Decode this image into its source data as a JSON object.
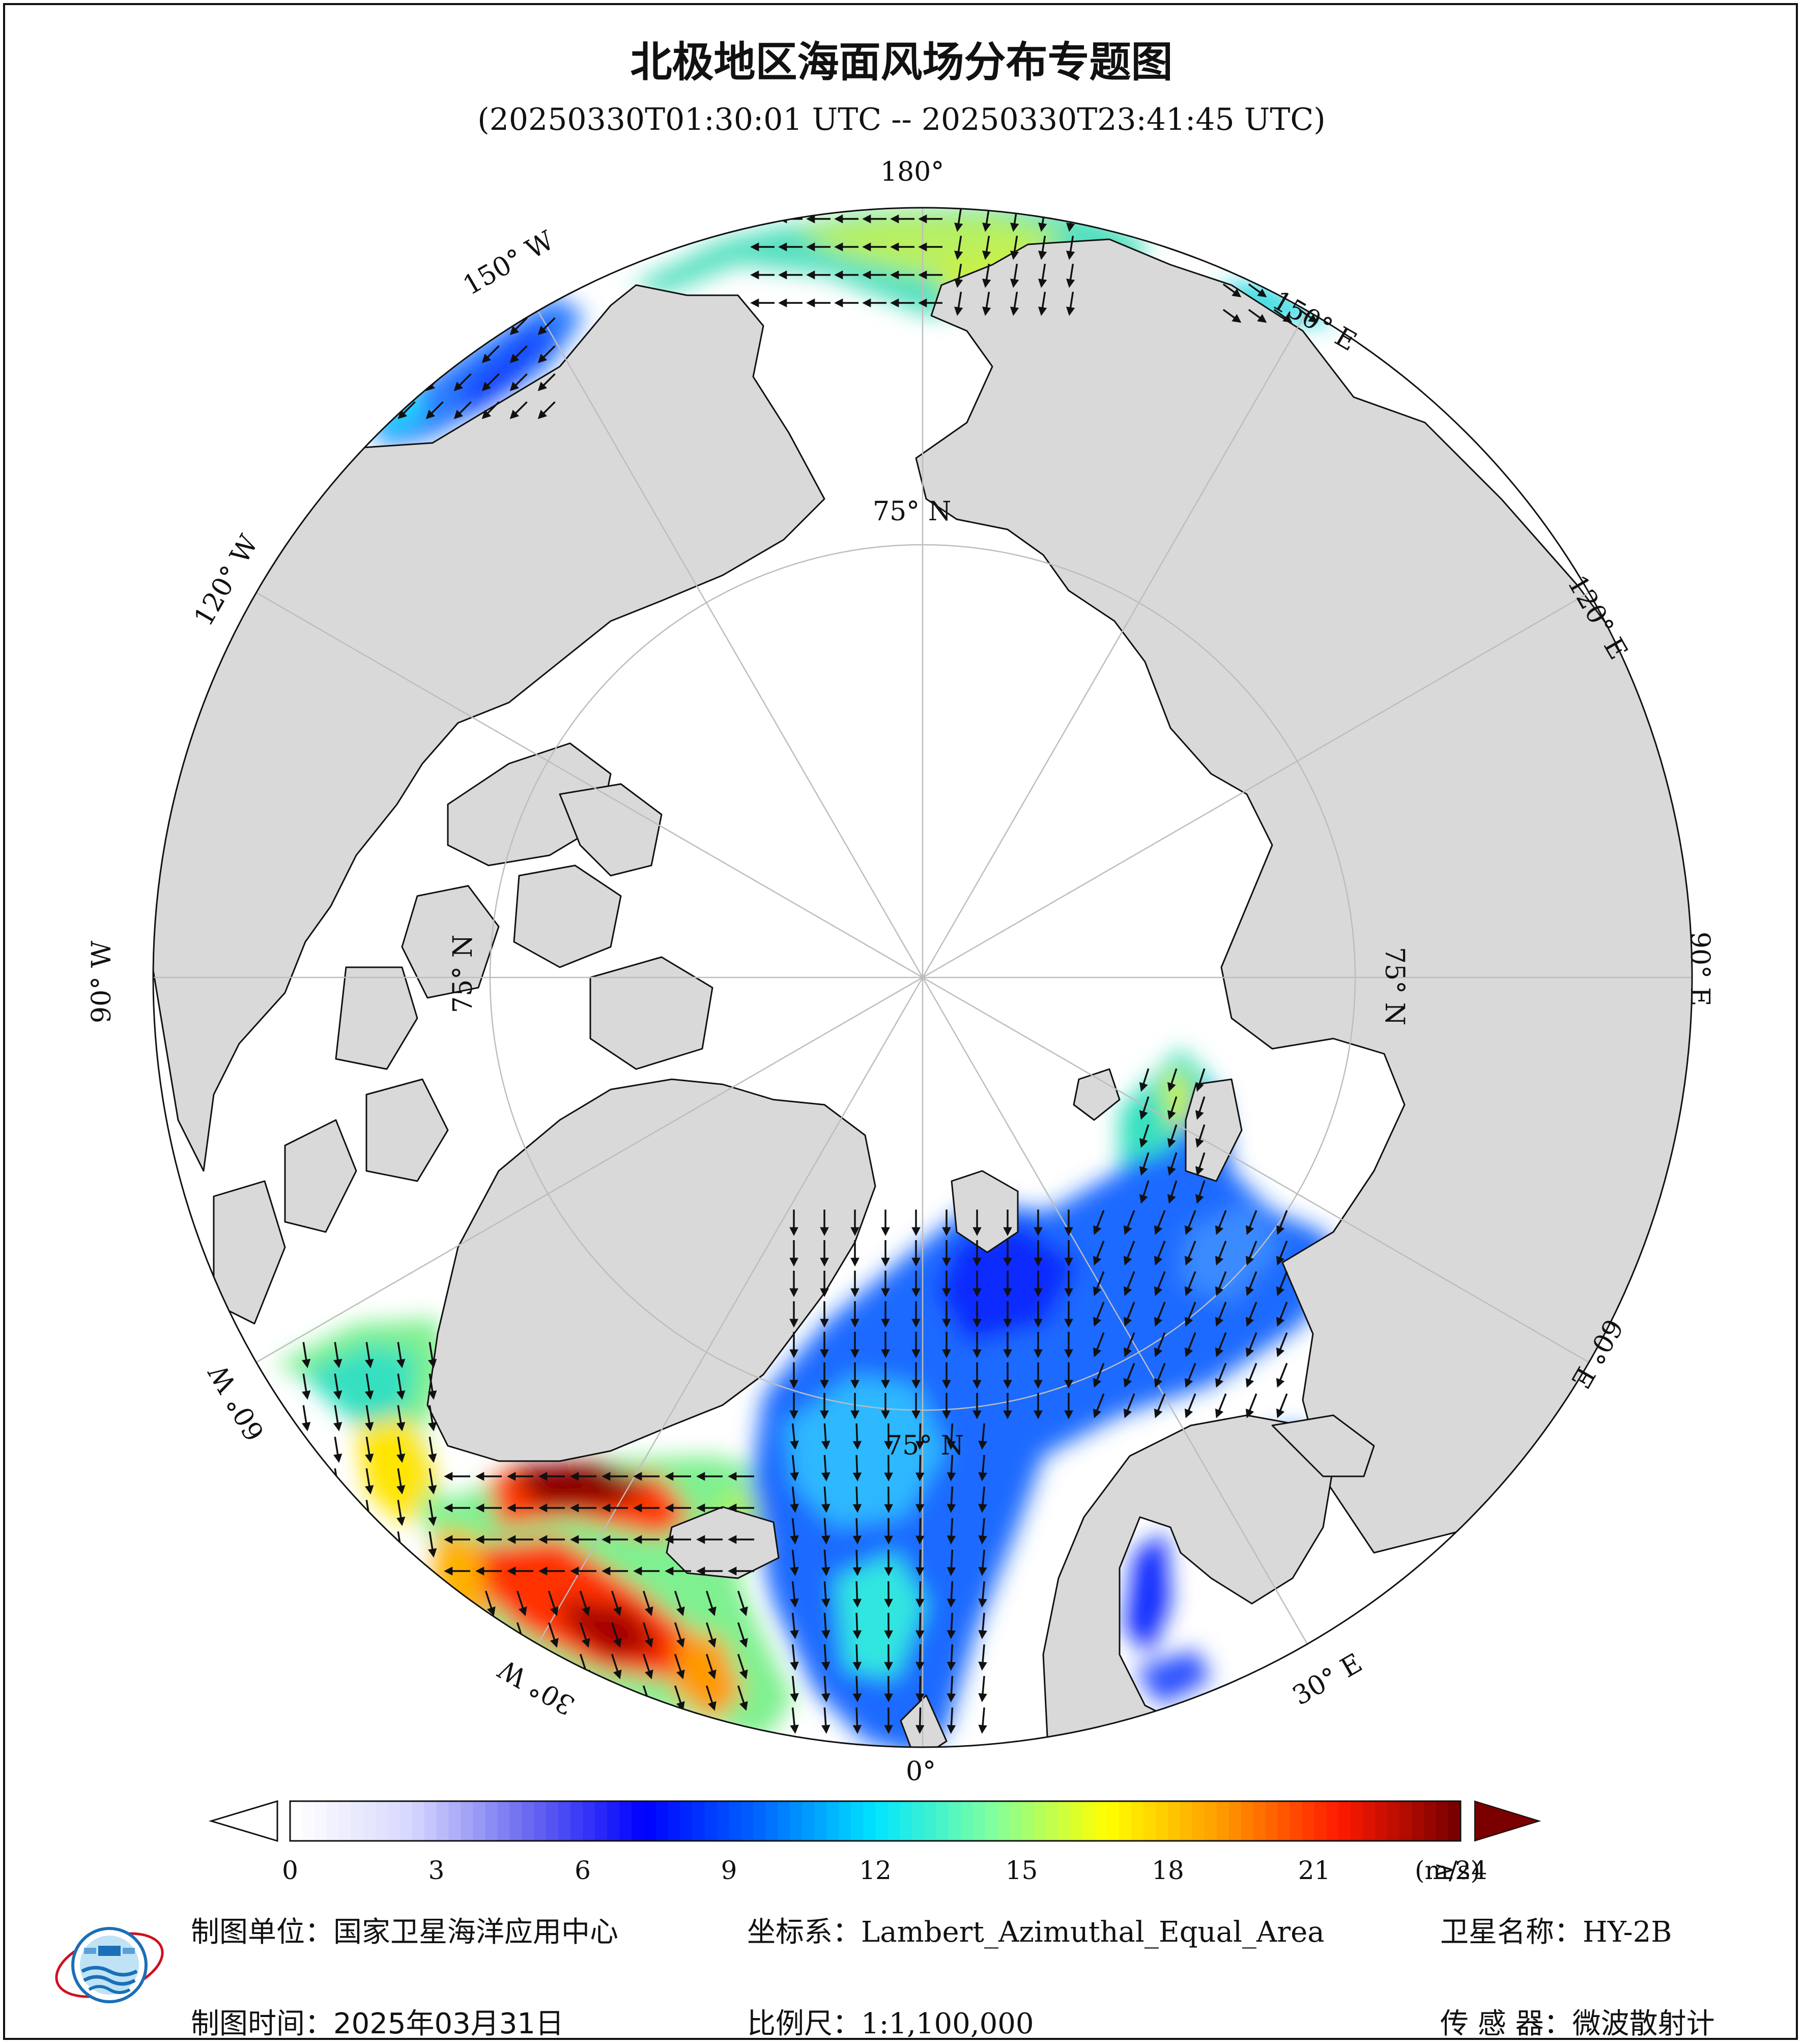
{
  "title": "北极地区海面风场分布专题图",
  "subtitle": "(20250330T01:30:01 UTC -- 20250330T23:41:45 UTC)",
  "map": {
    "projection_labels": {
      "lon_180": "180°",
      "lon_150w": "150° W",
      "lon_150e": "150° E",
      "lon_120w": "120° W",
      "lon_120e": "120° E",
      "lon_90w": "90° W",
      "lon_90e": "90° E",
      "lon_60w": "60° W",
      "lon_60e": "60° E",
      "lon_30w": "30° W",
      "lon_30e": "30° E",
      "lon_0": "0°",
      "lat_75n_top": "75° N",
      "lat_75n_right": "75° N",
      "lat_75n_left": "75° N",
      "lat_75n_bottom": "75° N"
    },
    "colors": {
      "ocean_no_data": "#ffffff",
      "land": "#d9d9d9",
      "coast": "#111111",
      "grid": "#bdbdbd",
      "arrow": "#111111"
    }
  },
  "colorbar": {
    "ticks": [
      "0",
      "3",
      "6",
      "9",
      "12",
      "15",
      "18",
      "21",
      "≥24"
    ],
    "unit": "(m/s)",
    "min": 0,
    "max": 24,
    "stops": [
      "#ffffff",
      "#d7d7ff",
      "#6a6af0",
      "#0000ff",
      "#0066ff",
      "#00e5ff",
      "#7fffa0",
      "#ffff00",
      "#ff9900",
      "#ff1a00",
      "#7a0000"
    ],
    "over_color": "#7a0000"
  },
  "footer": {
    "unit_label": "制图单位：",
    "unit_value": "国家卫星海洋应用中心",
    "coord_label": "坐标系：",
    "coord_value": "Lambert_Azimuthal_Equal_Area",
    "satellite_label": "卫星名称：",
    "satellite_value": "HY-2B",
    "time_label": "制图时间：",
    "time_value": "2025年03月31日",
    "scale_label": "比例尺：",
    "scale_value": "1:1,100,000",
    "sensor_label": "传 感 器：",
    "sensor_value": "微波散射计"
  },
  "logo": {
    "icon": "nsoas-logo-icon"
  }
}
